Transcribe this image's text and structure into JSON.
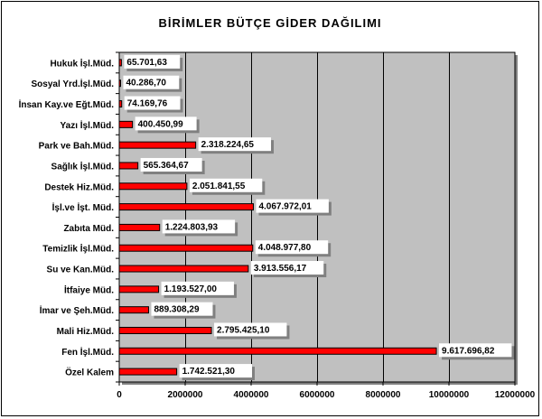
{
  "chart_data": {
    "type": "bar",
    "orientation": "horizontal",
    "title": "BİRİMLER BÜTÇE GİDER DAĞILIMI",
    "xlabel": "",
    "ylabel": "",
    "xlim": [
      0,
      12000000
    ],
    "x_ticks": [
      0,
      2000000,
      4000000,
      6000000,
      8000000,
      10000000,
      12000000
    ],
    "grid": true,
    "legend": "none",
    "colors": {
      "bar_fill": "#ff0000",
      "plot_background": "#c0c0c0",
      "label_box": "#ffffff",
      "label_shadow": "#808080",
      "gridline": "#000000"
    },
    "categories": [
      "Hukuk İşl.Müd.",
      "Sosyal Yrd.İşl.Müd.",
      "İnsan Kay.ve Eğt.Müd.",
      "Yazı İşl.Müd.",
      "Park ve Bah.Müd.",
      "Sağlık İşl.Müd.",
      "Destek Hiz.Müd.",
      "İşl.ve İşt. Müd.",
      "Zabıta Müd.",
      "Temizlik İşl.Müd.",
      "Su ve Kan.Müd.",
      "İtfaiye Müd.",
      "İmar ve Şeh.Müd.",
      "Mali Hiz.Müd.",
      "Fen İşl.Müd.",
      "Özel Kalem"
    ],
    "values": [
      65701.63,
      40286.7,
      74169.76,
      400450.99,
      2318224.65,
      565364.67,
      2051841.55,
      4067972.01,
      1224803.93,
      4048977.8,
      3913556.17,
      1193527.0,
      889308.29,
      2795425.1,
      9617696.82,
      1742521.3
    ],
    "value_labels": [
      "65.701,63",
      "40.286,70",
      "74.169,76",
      "400.450,99",
      "2.318.224,65",
      "565.364,67",
      "2.051.841,55",
      "4.067.972,01",
      "1.224.803,93",
      "4.048.977,80",
      "3.913.556,17",
      "1.193.527,00",
      "889.308,29",
      "2.795.425,10",
      "9.617.696,82",
      "1.742.521,30"
    ]
  }
}
